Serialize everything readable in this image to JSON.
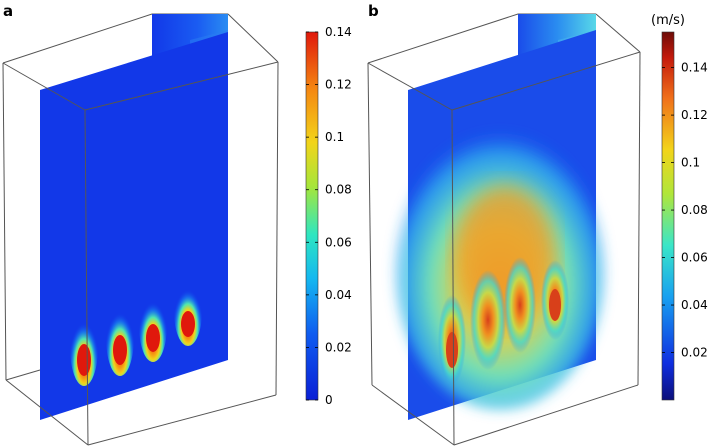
{
  "panels": [
    {
      "label": "a",
      "colorbar": {
        "min": 0,
        "max": 0.14,
        "ticks": [
          "0.14",
          "0.12",
          "0.1",
          "0.08",
          "0.06",
          "0.04",
          "0.02",
          "0"
        ],
        "tick_values": [
          0.14,
          0.12,
          0.1,
          0.08,
          0.06,
          0.04,
          0.02,
          0
        ],
        "colormap": "jet"
      }
    },
    {
      "label": "b",
      "colorbar": {
        "unit": "(m/s)",
        "min": 0,
        "max": 0.155,
        "ticks": [
          "0.14",
          "0.12",
          "0.1",
          "0.08",
          "0.06",
          "0.04",
          "0.02"
        ],
        "tick_values": [
          0.14,
          0.12,
          0.1,
          0.08,
          0.06,
          0.04,
          0.02
        ],
        "colormap": "jet (dark red top, dark blue bottom)"
      }
    }
  ]
}
